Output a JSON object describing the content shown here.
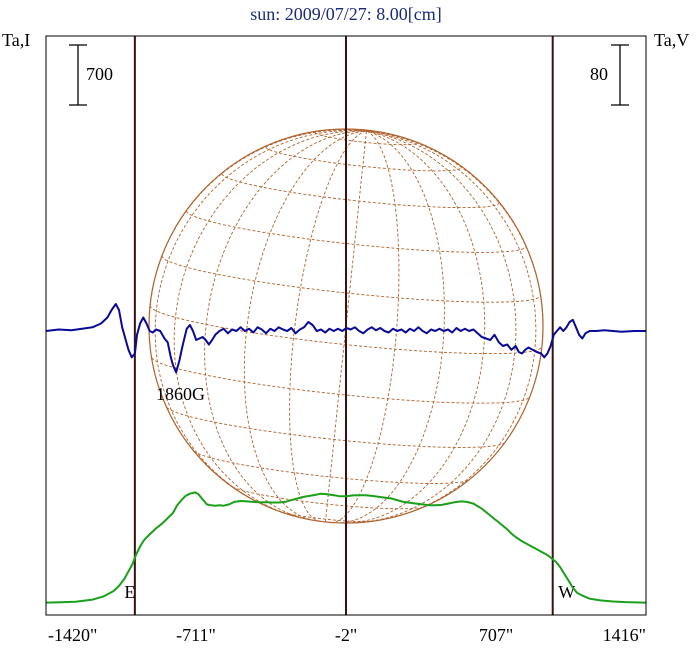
{
  "chart_data": {
    "type": "line",
    "title": "sun: 2009/07/27: 8.00[cm]",
    "left_axis_label": "Ta,I",
    "right_axis_label": "Ta,V",
    "scale_bars": {
      "intensity": "700",
      "polarization": "80"
    },
    "xlim": [
      -1420,
      1416
    ],
    "x_tick_labels": [
      "-1420\"",
      "-711\"",
      "-2\"",
      "707\"",
      "1416\""
    ],
    "x_tick_values": [
      -1420,
      -711,
      -2,
      707,
      1416
    ],
    "vertical_markers": [
      {
        "label": "E",
        "x": -1000
      },
      {
        "label": "",
        "x": -2
      },
      {
        "label": "W",
        "x": 975
      }
    ],
    "annotations": [
      {
        "text": "1860G",
        "x": -900
      }
    ],
    "colors": {
      "title": "#1a2a7a",
      "intensity": "#1aa01a",
      "polarization": "#0a0a96",
      "disk": "#b0622c",
      "markers": "#3a1010",
      "frame": "#000000"
    },
    "series": [
      {
        "key": "I",
        "points": [
          [
            -1420,
            5
          ],
          [
            -1350,
            8
          ],
          [
            -1280,
            15
          ],
          [
            -1200,
            40
          ],
          [
            -1150,
            75
          ],
          [
            -1100,
            140
          ],
          [
            -1075,
            200
          ],
          [
            -1050,
            280
          ],
          [
            -1030,
            370
          ],
          [
            -1010,
            460
          ],
          [
            -995,
            560
          ],
          [
            -975,
            660
          ],
          [
            -955,
            740
          ],
          [
            -930,
            800
          ],
          [
            -900,
            870
          ],
          [
            -870,
            930
          ],
          [
            -845,
            990
          ],
          [
            -820,
            1050
          ],
          [
            -800,
            1140
          ],
          [
            -780,
            1200
          ],
          [
            -760,
            1250
          ],
          [
            -740,
            1275
          ],
          [
            -715,
            1290
          ],
          [
            -700,
            1270
          ],
          [
            -680,
            1210
          ],
          [
            -660,
            1150
          ],
          [
            -640,
            1140
          ],
          [
            -620,
            1135
          ],
          [
            -600,
            1140
          ],
          [
            -580,
            1135
          ],
          [
            -555,
            1150
          ],
          [
            -530,
            1180
          ],
          [
            -500,
            1190
          ],
          [
            -470,
            1185
          ],
          [
            -440,
            1180
          ],
          [
            -410,
            1175
          ],
          [
            -380,
            1175
          ],
          [
            -350,
            1172
          ],
          [
            -320,
            1172
          ],
          [
            -290,
            1180
          ],
          [
            -260,
            1200
          ],
          [
            -230,
            1220
          ],
          [
            -200,
            1240
          ],
          [
            -175,
            1250
          ],
          [
            -150,
            1260
          ],
          [
            -120,
            1275
          ],
          [
            -90,
            1268
          ],
          [
            -60,
            1258
          ],
          [
            -30,
            1245
          ],
          [
            0,
            1245
          ],
          [
            30,
            1255
          ],
          [
            60,
            1258
          ],
          [
            90,
            1258
          ],
          [
            120,
            1250
          ],
          [
            150,
            1240
          ],
          [
            180,
            1230
          ],
          [
            210,
            1220
          ],
          [
            240,
            1200
          ],
          [
            270,
            1180
          ],
          [
            300,
            1170
          ],
          [
            330,
            1160
          ],
          [
            360,
            1150
          ],
          [
            390,
            1140
          ],
          [
            420,
            1140
          ],
          [
            450,
            1145
          ],
          [
            480,
            1160
          ],
          [
            510,
            1175
          ],
          [
            540,
            1185
          ],
          [
            570,
            1180
          ],
          [
            600,
            1160
          ],
          [
            620,
            1130
          ],
          [
            640,
            1100
          ],
          [
            660,
            1060
          ],
          [
            680,
            1020
          ],
          [
            700,
            980
          ],
          [
            720,
            940
          ],
          [
            740,
            900
          ],
          [
            760,
            860
          ],
          [
            780,
            810
          ],
          [
            800,
            770
          ],
          [
            830,
            720
          ],
          [
            860,
            680
          ],
          [
            890,
            640
          ],
          [
            920,
            600
          ],
          [
            950,
            560
          ],
          [
            970,
            520
          ],
          [
            990,
            480
          ],
          [
            1010,
            420
          ],
          [
            1030,
            340
          ],
          [
            1050,
            260
          ],
          [
            1070,
            180
          ],
          [
            1090,
            120
          ],
          [
            1120,
            80
          ],
          [
            1150,
            50
          ],
          [
            1200,
            30
          ],
          [
            1260,
            18
          ],
          [
            1320,
            10
          ],
          [
            1416,
            5
          ]
        ]
      },
      {
        "key": "V",
        "points": [
          [
            -1420,
            0
          ],
          [
            -1360,
            2
          ],
          [
            -1300,
            1
          ],
          [
            -1250,
            3
          ],
          [
            -1200,
            5
          ],
          [
            -1160,
            10
          ],
          [
            -1130,
            18
          ],
          [
            -1110,
            28
          ],
          [
            -1090,
            36
          ],
          [
            -1075,
            28
          ],
          [
            -1060,
            5
          ],
          [
            -1045,
            -10
          ],
          [
            -1030,
            -25
          ],
          [
            -1015,
            -35
          ],
          [
            -1000,
            -30
          ],
          [
            -990,
            -5
          ],
          [
            -975,
            10
          ],
          [
            -960,
            18
          ],
          [
            -945,
            10
          ],
          [
            -930,
            0
          ],
          [
            -915,
            -2
          ],
          [
            -900,
            2
          ],
          [
            -880,
            0
          ],
          [
            -860,
            -10
          ],
          [
            -845,
            -15
          ],
          [
            -830,
            -35
          ],
          [
            -820,
            -45
          ],
          [
            -805,
            -55
          ],
          [
            -790,
            -40
          ],
          [
            -775,
            -20
          ],
          [
            -755,
            3
          ],
          [
            -740,
            8
          ],
          [
            -725,
            0
          ],
          [
            -710,
            -12
          ],
          [
            -695,
            -10
          ],
          [
            -680,
            -8
          ],
          [
            -665,
            -12
          ],
          [
            -650,
            -18
          ],
          [
            -635,
            -12
          ],
          [
            -620,
            -5
          ],
          [
            -600,
            0
          ],
          [
            -580,
            3
          ],
          [
            -560,
            -3
          ],
          [
            -540,
            2
          ],
          [
            -520,
            0
          ],
          [
            -500,
            5
          ],
          [
            -480,
            0
          ],
          [
            -460,
            3
          ],
          [
            -440,
            -2
          ],
          [
            -420,
            5
          ],
          [
            -400,
            2
          ],
          [
            -380,
            -3
          ],
          [
            -360,
            3
          ],
          [
            -340,
            0
          ],
          [
            -320,
            5
          ],
          [
            -300,
            2
          ],
          [
            -280,
            0
          ],
          [
            -260,
            4
          ],
          [
            -240,
            -3
          ],
          [
            -220,
            2
          ],
          [
            -200,
            5
          ],
          [
            -180,
            12
          ],
          [
            -160,
            8
          ],
          [
            -140,
            0
          ],
          [
            -120,
            2
          ],
          [
            -100,
            -2
          ],
          [
            -80,
            3
          ],
          [
            -60,
            0
          ],
          [
            -40,
            3
          ],
          [
            -20,
            0
          ],
          [
            0,
            4
          ],
          [
            20,
            2
          ],
          [
            40,
            5
          ],
          [
            60,
            0
          ],
          [
            80,
            -3
          ],
          [
            100,
            2
          ],
          [
            120,
            5
          ],
          [
            140,
            1
          ],
          [
            160,
            4
          ],
          [
            180,
            0
          ],
          [
            200,
            -2
          ],
          [
            220,
            3
          ],
          [
            240,
            0
          ],
          [
            260,
            2
          ],
          [
            280,
            -2
          ],
          [
            300,
            3
          ],
          [
            320,
            0
          ],
          [
            340,
            5
          ],
          [
            360,
            0
          ],
          [
            380,
            -3
          ],
          [
            400,
            2
          ],
          [
            420,
            0
          ],
          [
            440,
            3
          ],
          [
            460,
            0
          ],
          [
            480,
            2
          ],
          [
            500,
            -2
          ],
          [
            520,
            4
          ],
          [
            540,
            0
          ],
          [
            560,
            3
          ],
          [
            580,
            0
          ],
          [
            600,
            2
          ],
          [
            620,
            -3
          ],
          [
            640,
            -8
          ],
          [
            660,
            -10
          ],
          [
            680,
            -12
          ],
          [
            700,
            -5
          ],
          [
            720,
            -15
          ],
          [
            740,
            -20
          ],
          [
            760,
            -18
          ],
          [
            780,
            -25
          ],
          [
            800,
            -20
          ],
          [
            815,
            -28
          ],
          [
            830,
            -30
          ],
          [
            845,
            -25
          ],
          [
            860,
            -22
          ],
          [
            880,
            -25
          ],
          [
            900,
            -28
          ],
          [
            920,
            -30
          ],
          [
            935,
            -35
          ],
          [
            950,
            -30
          ],
          [
            965,
            -20
          ],
          [
            980,
            -5
          ],
          [
            995,
            0
          ],
          [
            1010,
            5
          ],
          [
            1025,
            0
          ],
          [
            1040,
            5
          ],
          [
            1055,
            12
          ],
          [
            1070,
            15
          ],
          [
            1085,
            5
          ],
          [
            1100,
            -5
          ],
          [
            1115,
            -10
          ],
          [
            1130,
            -3
          ],
          [
            1150,
            0
          ],
          [
            1180,
            0
          ],
          [
            1220,
            1
          ],
          [
            1260,
            0
          ],
          [
            1300,
            -1
          ],
          [
            1360,
            0
          ],
          [
            1416,
            0
          ]
        ]
      }
    ]
  }
}
